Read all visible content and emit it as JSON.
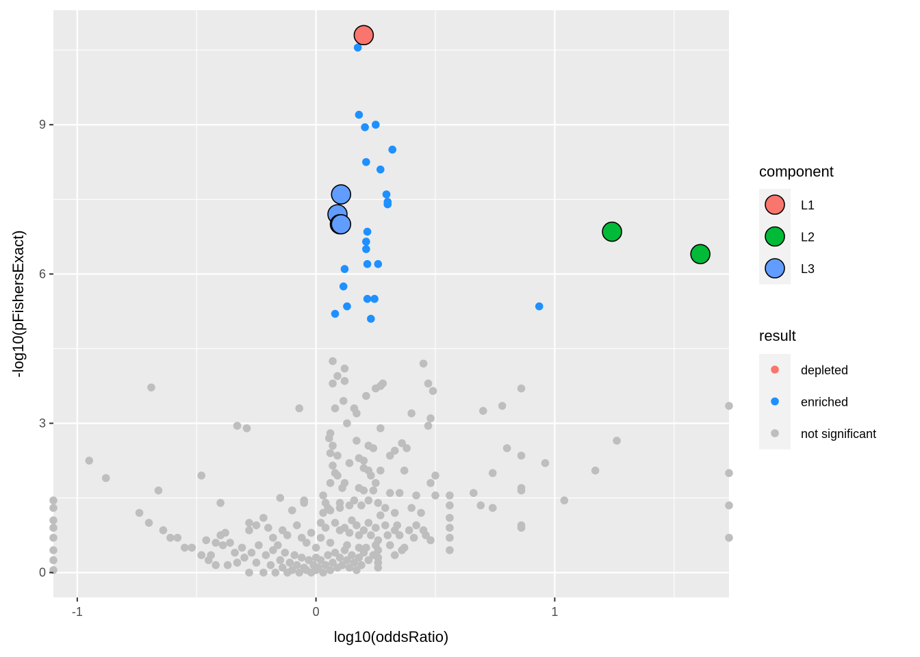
{
  "chart_data": {
    "type": "scatter",
    "xlabel": "log10(oddsRatio)",
    "ylabel": "-log10(pFishersExact)",
    "xlim": [
      -1.1,
      1.73
    ],
    "ylim": [
      -0.5,
      11.3
    ],
    "x_ticks": [
      -1,
      0,
      1
    ],
    "x_tick_labels": [
      "-1",
      "0",
      "1"
    ],
    "y_ticks": [
      0,
      3,
      6,
      9
    ],
    "y_tick_labels": [
      "0",
      "3",
      "6",
      "9"
    ],
    "grid": true,
    "legend_position": "right",
    "colors": {
      "panel_bg": "#EBEBEB",
      "grid": "#FFFFFF",
      "depleted": "#F8766D",
      "enriched": "#1E90FF",
      "not_significant": "#BEBEBE",
      "L1": "#F8766D",
      "L2": "#00BA38",
      "L3": "#619CFF"
    },
    "legends": [
      {
        "title": "component",
        "entries": [
          {
            "label": "L1",
            "color": "#F8766D"
          },
          {
            "label": "L2",
            "color": "#00BA38"
          },
          {
            "label": "L3",
            "color": "#619CFF"
          }
        ]
      },
      {
        "title": "result",
        "entries": [
          {
            "label": "depleted",
            "color": "#F8766D"
          },
          {
            "label": "enriched",
            "color": "#1E90FF"
          },
          {
            "label": "not significant",
            "color": "#BEBEBE"
          }
        ]
      }
    ],
    "series": [
      {
        "name": "enriched",
        "points": [
          [
            0.175,
            10.55
          ],
          [
            0.18,
            9.2
          ],
          [
            0.205,
            8.95
          ],
          [
            0.25,
            9.0
          ],
          [
            0.32,
            8.5
          ],
          [
            0.21,
            8.25
          ],
          [
            0.27,
            8.1
          ],
          [
            0.295,
            7.6
          ],
          [
            0.3,
            7.45
          ],
          [
            0.3,
            7.4
          ],
          [
            0.215,
            6.85
          ],
          [
            0.21,
            6.65
          ],
          [
            0.21,
            6.5
          ],
          [
            0.215,
            6.2
          ],
          [
            0.26,
            6.2
          ],
          [
            0.12,
            6.1
          ],
          [
            0.115,
            5.75
          ],
          [
            0.215,
            5.5
          ],
          [
            0.245,
            5.5
          ],
          [
            0.13,
            5.35
          ],
          [
            0.08,
            5.2
          ],
          [
            0.23,
            5.1
          ],
          [
            0.935,
            5.35
          ]
        ]
      },
      {
        "name": "not significant",
        "points": [
          [
            0.07,
            4.25
          ],
          [
            0.12,
            4.1
          ],
          [
            0.45,
            4.2
          ],
          [
            0.09,
            3.95
          ],
          [
            0.12,
            3.85
          ],
          [
            0.07,
            3.8
          ],
          [
            0.47,
            3.8
          ],
          [
            0.28,
            3.8
          ],
          [
            0.27,
            3.75
          ],
          [
            0.25,
            3.7
          ],
          [
            0.49,
            3.65
          ],
          [
            0.86,
            3.7
          ],
          [
            -0.69,
            3.72
          ],
          [
            0.115,
            3.45
          ],
          [
            0.21,
            3.55
          ],
          [
            0.08,
            3.3
          ],
          [
            0.16,
            3.3
          ],
          [
            0.17,
            3.2
          ],
          [
            -0.07,
            3.3
          ],
          [
            0.4,
            3.2
          ],
          [
            0.7,
            3.25
          ],
          [
            0.78,
            3.35
          ],
          [
            0.48,
            3.1
          ],
          [
            1.73,
            3.35
          ],
          [
            0.13,
            3.0
          ],
          [
            0.47,
            2.95
          ],
          [
            -0.33,
            2.95
          ],
          [
            -0.29,
            2.9
          ],
          [
            0.27,
            2.9
          ],
          [
            0.06,
            2.8
          ],
          [
            0.055,
            2.7
          ],
          [
            0.17,
            2.65
          ],
          [
            0.36,
            2.6
          ],
          [
            1.26,
            2.65
          ],
          [
            0.07,
            2.55
          ],
          [
            0.22,
            2.55
          ],
          [
            0.24,
            2.5
          ],
          [
            0.33,
            2.45
          ],
          [
            0.38,
            2.5
          ],
          [
            0.8,
            2.5
          ],
          [
            0.86,
            2.35
          ],
          [
            0.06,
            2.4
          ],
          [
            0.09,
            2.35
          ],
          [
            0.18,
            2.3
          ],
          [
            0.31,
            2.35
          ],
          [
            0.2,
            2.25
          ],
          [
            -0.95,
            2.25
          ],
          [
            0.96,
            2.2
          ],
          [
            0.07,
            2.15
          ],
          [
            0.14,
            2.2
          ],
          [
            0.2,
            2.1
          ],
          [
            0.22,
            2.05
          ],
          [
            0.27,
            2.05
          ],
          [
            0.37,
            2.05
          ],
          [
            0.08,
            2.0
          ],
          [
            0.09,
            1.95
          ],
          [
            0.23,
            1.95
          ],
          [
            1.17,
            2.05
          ],
          [
            0.74,
            2.0
          ],
          [
            0.5,
            1.95
          ],
          [
            1.73,
            2.0
          ],
          [
            -0.88,
            1.9
          ],
          [
            -0.48,
            1.95
          ],
          [
            0.48,
            1.8
          ],
          [
            0.06,
            1.8
          ],
          [
            0.12,
            1.8
          ],
          [
            0.25,
            1.8
          ],
          [
            0.11,
            1.7
          ],
          [
            0.18,
            1.7
          ],
          [
            0.2,
            1.65
          ],
          [
            0.24,
            1.65
          ],
          [
            0.31,
            1.6
          ],
          [
            0.35,
            1.6
          ],
          [
            0.42,
            1.55
          ],
          [
            0.5,
            1.55
          ],
          [
            0.56,
            1.55
          ],
          [
            0.66,
            1.6
          ],
          [
            0.86,
            1.65
          ],
          [
            0.86,
            1.7
          ],
          [
            -0.66,
            1.65
          ],
          [
            1.04,
            1.45
          ],
          [
            -1.1,
            1.45
          ],
          [
            -1.1,
            1.3
          ],
          [
            -1.1,
            1.05
          ],
          [
            -1.1,
            0.9
          ],
          [
            -1.1,
            0.7
          ],
          [
            -1.1,
            0.45
          ],
          [
            -1.1,
            0.25
          ],
          [
            -1.1,
            0.05
          ],
          [
            -0.15,
            1.5
          ],
          [
            -0.05,
            1.45
          ],
          [
            -0.05,
            1.4
          ],
          [
            0.03,
            1.55
          ],
          [
            0.04,
            1.4
          ],
          [
            0.05,
            1.3
          ],
          [
            0.03,
            1.2
          ],
          [
            0.06,
            1.25
          ],
          [
            0.1,
            1.4
          ],
          [
            0.1,
            1.3
          ],
          [
            0.14,
            1.35
          ],
          [
            0.16,
            1.45
          ],
          [
            0.19,
            1.35
          ],
          [
            0.22,
            1.45
          ],
          [
            0.26,
            1.4
          ],
          [
            0.29,
            1.3
          ],
          [
            0.33,
            1.2
          ],
          [
            0.4,
            1.3
          ],
          [
            0.44,
            1.2
          ],
          [
            0.56,
            1.35
          ],
          [
            0.56,
            1.1
          ],
          [
            0.56,
            0.9
          ],
          [
            0.56,
            0.7
          ],
          [
            0.56,
            0.45
          ],
          [
            0.69,
            1.35
          ],
          [
            0.74,
            1.3
          ],
          [
            0.86,
            0.95
          ],
          [
            0.86,
            0.9
          ],
          [
            1.73,
            1.35
          ],
          [
            1.73,
            0.7
          ],
          [
            -0.74,
            1.2
          ],
          [
            -0.7,
            1.0
          ],
          [
            -0.64,
            0.85
          ],
          [
            -0.61,
            0.7
          ],
          [
            -0.58,
            0.7
          ],
          [
            -0.55,
            0.5
          ],
          [
            -0.52,
            0.5
          ],
          [
            -0.48,
            0.35
          ],
          [
            -0.46,
            0.65
          ],
          [
            -0.4,
            1.4
          ],
          [
            -0.4,
            0.75
          ],
          [
            -0.38,
            0.8
          ],
          [
            -0.42,
            0.6
          ],
          [
            -0.39,
            0.55
          ],
          [
            -0.44,
            0.35
          ],
          [
            -0.36,
            0.6
          ],
          [
            -0.34,
            0.4
          ],
          [
            -0.31,
            0.5
          ],
          [
            -0.28,
            1.0
          ],
          [
            -0.28,
            0.85
          ],
          [
            -0.25,
            0.95
          ],
          [
            -0.22,
            1.1
          ],
          [
            -0.2,
            0.9
          ],
          [
            -0.18,
            0.7
          ],
          [
            -0.16,
            0.55
          ],
          [
            -0.14,
            0.85
          ],
          [
            -0.12,
            0.75
          ],
          [
            -0.1,
            1.25
          ],
          [
            -0.08,
            0.95
          ],
          [
            -0.06,
            0.7
          ],
          [
            -0.04,
            0.6
          ],
          [
            -0.02,
            0.8
          ],
          [
            0.0,
            0.5
          ],
          [
            0.02,
            0.7
          ],
          [
            0.02,
            1.0
          ],
          [
            0.04,
            0.9
          ],
          [
            0.06,
            0.6
          ],
          [
            0.08,
            1.0
          ],
          [
            0.1,
            0.85
          ],
          [
            0.12,
            0.9
          ],
          [
            0.14,
            0.8
          ],
          [
            0.15,
            1.05
          ],
          [
            0.17,
            0.95
          ],
          [
            0.18,
            0.75
          ],
          [
            0.2,
            0.85
          ],
          [
            0.22,
            1.0
          ],
          [
            0.23,
            0.75
          ],
          [
            0.25,
            0.9
          ],
          [
            0.26,
            0.65
          ],
          [
            0.27,
            1.15
          ],
          [
            0.29,
            0.95
          ],
          [
            0.3,
            0.75
          ],
          [
            0.31,
            0.55
          ],
          [
            0.33,
            0.85
          ],
          [
            0.34,
            0.95
          ],
          [
            0.35,
            0.75
          ],
          [
            0.37,
            0.5
          ],
          [
            0.39,
            0.85
          ],
          [
            0.41,
            0.7
          ],
          [
            0.42,
            0.95
          ],
          [
            0.45,
            0.85
          ],
          [
            0.48,
            0.65
          ],
          [
            0.25,
            0.55
          ],
          [
            0.21,
            0.5
          ],
          [
            0.13,
            0.55
          ],
          [
            0.18,
            0.5
          ],
          [
            -0.33,
            0.2
          ],
          [
            -0.3,
            0.3
          ],
          [
            -0.28,
            0.0
          ],
          [
            -0.27,
            0.4
          ],
          [
            -0.25,
            0.2
          ],
          [
            -0.24,
            0.55
          ],
          [
            -0.22,
            0.0
          ],
          [
            -0.21,
            0.35
          ],
          [
            -0.19,
            0.15
          ],
          [
            -0.18,
            0.45
          ],
          [
            -0.17,
            0.0
          ],
          [
            -0.15,
            0.25
          ],
          [
            -0.14,
            0.1
          ],
          [
            -0.13,
            0.4
          ],
          [
            -0.12,
            0.0
          ],
          [
            -0.11,
            0.2
          ],
          [
            -0.1,
            0.05
          ],
          [
            -0.09,
            0.35
          ],
          [
            -0.08,
            0.15
          ],
          [
            -0.07,
            0.0
          ],
          [
            -0.06,
            0.3
          ],
          [
            -0.05,
            0.1
          ],
          [
            -0.04,
            0.05
          ],
          [
            -0.03,
            0.25
          ],
          [
            -0.02,
            0.0
          ],
          [
            -0.01,
            0.15
          ],
          [
            0.0,
            0.05
          ],
          [
            0.0,
            0.3
          ],
          [
            0.01,
            0.1
          ],
          [
            0.02,
            0.25
          ],
          [
            0.03,
            0.0
          ],
          [
            0.04,
            0.15
          ],
          [
            0.05,
            0.35
          ],
          [
            0.06,
            0.05
          ],
          [
            0.07,
            0.2
          ],
          [
            0.08,
            0.4
          ],
          [
            0.09,
            0.1
          ],
          [
            0.1,
            0.3
          ],
          [
            0.11,
            0.15
          ],
          [
            0.12,
            0.45
          ],
          [
            0.13,
            0.25
          ],
          [
            0.14,
            0.1
          ],
          [
            0.15,
            0.35
          ],
          [
            0.16,
            0.2
          ],
          [
            0.17,
            0.05
          ],
          [
            0.18,
            0.3
          ],
          [
            0.19,
            0.15
          ],
          [
            0.2,
            0.4
          ],
          [
            0.22,
            0.25
          ],
          [
            0.24,
            0.35
          ],
          [
            -0.37,
            0.15
          ],
          [
            -0.42,
            0.15
          ],
          [
            -0.45,
            0.25
          ],
          [
            0.26,
            0.45
          ],
          [
            0.26,
            0.3
          ],
          [
            0.26,
            0.2
          ],
          [
            0.26,
            0.1
          ],
          [
            0.33,
            0.35
          ],
          [
            0.36,
            0.45
          ],
          [
            0.46,
            0.75
          ]
        ]
      },
      {
        "name": "L1",
        "points": [
          [
            0.2,
            10.8
          ]
        ]
      },
      {
        "name": "L2",
        "points": [
          [
            1.24,
            6.85
          ],
          [
            1.61,
            6.4
          ]
        ]
      },
      {
        "name": "L3",
        "points": [
          [
            0.105,
            7.6
          ],
          [
            0.09,
            7.2
          ],
          [
            0.1,
            7.0
          ],
          [
            0.105,
            7.0
          ]
        ]
      }
    ]
  }
}
